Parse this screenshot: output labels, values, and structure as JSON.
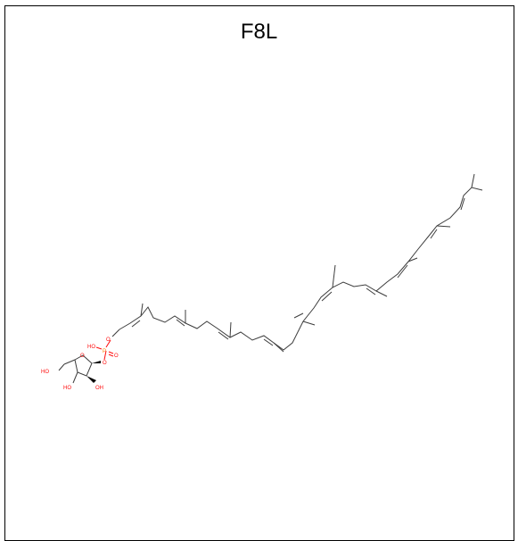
{
  "molecule": {
    "title": "F8L",
    "colors": {
      "bond": "#3c3c3c",
      "oxygen": "#ff0d0d",
      "phosphorus": "#ff8000"
    },
    "atom_labels": {
      "p": "P",
      "ho_p": "HO",
      "o_ester": "O",
      "o_link": "O",
      "o_ring": "O",
      "o_double": "O",
      "ho_ch2": "HO",
      "ho_c3": "HO",
      "oh_c2": "OH"
    }
  }
}
